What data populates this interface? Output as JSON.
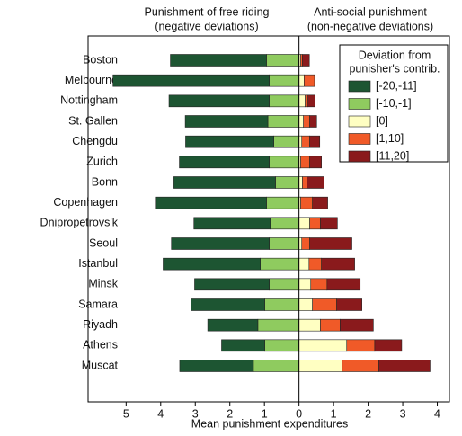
{
  "chart_data": {
    "type": "diverging_stacked_barh",
    "header_left": [
      "Punishment of free riding",
      "(negative deviations)"
    ],
    "header_right": [
      "Anti-social punishment",
      "(non-negative deviations)"
    ],
    "x_label": "Mean punishment expenditures",
    "legend_title": [
      "Deviation from",
      "punisher's contrib."
    ],
    "legend_position": "upper right",
    "categories": [
      "Boston",
      "Melbourne",
      "Nottingham",
      "St. Gallen",
      "Chengdu",
      "Zurich",
      "Bonn",
      "Copenhagen",
      "Dnipropetrovs'k",
      "Seoul",
      "Istanbul",
      "Minsk",
      "Samara",
      "Riyadh",
      "Athens",
      "Muscat"
    ],
    "series": [
      {
        "name": "[-20,-11]",
        "color": "#1d5532",
        "values": [
          -2.78,
          -4.52,
          -2.9,
          -2.39,
          -2.55,
          -2.6,
          -2.94,
          -3.19,
          -2.21,
          -2.83,
          -2.81,
          -2.16,
          -2.13,
          -1.45,
          -1.25,
          -2.13
        ]
      },
      {
        "name": "[-10,-1]",
        "color": "#8fcb5f",
        "values": [
          -0.94,
          -0.86,
          -0.86,
          -0.9,
          -0.73,
          -0.86,
          -0.68,
          -0.94,
          -0.83,
          -0.86,
          -1.12,
          -0.86,
          -0.99,
          -1.19,
          -0.99,
          -1.32
        ]
      },
      {
        "name": "[0]",
        "color": "#ffffc2",
        "values": [
          0.05,
          0.15,
          0.18,
          0.13,
          0.08,
          0.05,
          0.1,
          0.05,
          0.31,
          0.08,
          0.29,
          0.34,
          0.39,
          0.62,
          1.38,
          1.25
        ]
      },
      {
        "name": "[1,10]",
        "color": "#f05a28",
        "values": [
          0.05,
          0.3,
          0.08,
          0.18,
          0.23,
          0.26,
          0.13,
          0.34,
          0.31,
          0.23,
          0.36,
          0.47,
          0.7,
          0.57,
          0.81,
          1.06
        ]
      },
      {
        "name": "[11,20]",
        "color": "#8a1a1c",
        "values": [
          0.2,
          0,
          0.2,
          0.2,
          0.29,
          0.34,
          0.49,
          0.44,
          0.49,
          1.22,
          0.96,
          0.96,
          0.73,
          0.96,
          0.78,
          1.48
        ]
      }
    ],
    "xlim": [
      -6.1,
      4.35
    ],
    "xticks": [
      {
        "value": -5,
        "label": "5"
      },
      {
        "value": -4,
        "label": "4"
      },
      {
        "value": -3,
        "label": "3"
      },
      {
        "value": -2,
        "label": "2"
      },
      {
        "value": -1,
        "label": "1"
      },
      0,
      1,
      2,
      3,
      4
    ]
  }
}
